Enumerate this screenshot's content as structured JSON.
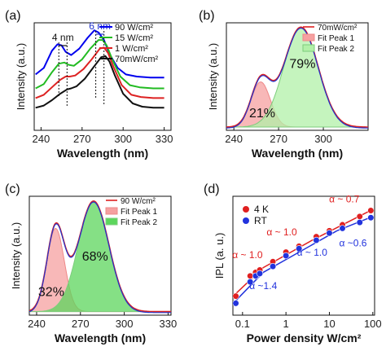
{
  "figure": {
    "panel_labels": [
      "(a)",
      "(b)",
      "(c)",
      "(d)"
    ]
  },
  "chart_data": [
    {
      "panel": "(a)",
      "type": "line",
      "xlabel": "Wavelength (nm)",
      "ylabel": "Intensity (a.u.)",
      "xlim": [
        235,
        335
      ],
      "xticks": [
        240,
        270,
        300,
        330
      ],
      "xtick_labels": [
        "240",
        "270",
        "300",
        "330"
      ],
      "legend_position": "top-right",
      "annotations": [
        {
          "text": "4 nm",
          "x_from": 253,
          "x_to": 259
        },
        {
          "text": "6 nm",
          "x_from": 280,
          "x_to": 286
        }
      ],
      "series": [
        {
          "name": "90 W/cm²",
          "color": "#0000ee",
          "x": [
            236,
            242,
            248,
            252,
            255,
            258,
            262,
            268,
            274,
            279,
            282,
            286,
            290,
            296,
            302,
            310,
            320,
            330
          ],
          "y": [
            0.52,
            0.58,
            0.74,
            0.8,
            0.79,
            0.73,
            0.7,
            0.76,
            0.86,
            0.93,
            0.91,
            0.84,
            0.71,
            0.58,
            0.52,
            0.5,
            0.49,
            0.49
          ]
        },
        {
          "name": "15 W/cm²",
          "color": "#22bb22",
          "x": [
            236,
            242,
            248,
            253,
            257,
            260,
            264,
            270,
            276,
            282,
            285,
            288,
            292,
            298,
            305,
            312,
            322,
            330
          ],
          "y": [
            0.39,
            0.43,
            0.54,
            0.62,
            0.63,
            0.61,
            0.6,
            0.66,
            0.76,
            0.84,
            0.84,
            0.79,
            0.66,
            0.5,
            0.42,
            0.4,
            0.39,
            0.39
          ]
        },
        {
          "name": "1 W/cm²",
          "color": "#dd2222",
          "x": [
            236,
            242,
            248,
            254,
            258,
            261,
            265,
            271,
            277,
            283,
            286,
            289,
            293,
            299,
            306,
            313,
            322,
            330
          ],
          "y": [
            0.3,
            0.33,
            0.4,
            0.47,
            0.5,
            0.5,
            0.51,
            0.57,
            0.66,
            0.76,
            0.77,
            0.72,
            0.59,
            0.42,
            0.33,
            0.31,
            0.3,
            0.3
          ]
        },
        {
          "name": "70mW/cm²",
          "color": "#111111",
          "x": [
            236,
            242,
            248,
            254,
            259,
            262,
            266,
            272,
            278,
            284,
            287,
            290,
            294,
            300,
            307,
            314,
            322,
            330
          ],
          "y": [
            0.21,
            0.23,
            0.28,
            0.34,
            0.38,
            0.39,
            0.41,
            0.48,
            0.58,
            0.68,
            0.69,
            0.64,
            0.51,
            0.34,
            0.25,
            0.22,
            0.21,
            0.21
          ]
        }
      ]
    },
    {
      "panel": "(b)",
      "type": "area",
      "xlabel": "Wavelength (nm)",
      "ylabel": "Intensity (a.u.)",
      "xlim": [
        235,
        330
      ],
      "xticks": [
        240,
        270,
        300
      ],
      "xtick_labels": [
        "240",
        "270",
        "300"
      ],
      "legend_position": "top-right",
      "annotations": [
        {
          "text": "21%",
          "x": 259,
          "y": 0.12
        },
        {
          "text": "79%",
          "x": 286,
          "y": 0.58
        }
      ],
      "series": [
        {
          "name": "70mW/cm²",
          "kind": "data",
          "color": "#dd2222"
        },
        {
          "name": "Fit Peak 1",
          "kind": "gauss",
          "center": 258,
          "amplitude": 0.42,
          "sigma": 6.5,
          "color": "#ee8888",
          "fill": "#f6a0a0"
        },
        {
          "name": "Fit Peak 2",
          "kind": "gauss",
          "center": 285,
          "amplitude": 0.93,
          "sigma": 11.5,
          "color": "#7ccd7c",
          "fill": "#b2f0a8"
        },
        {
          "name": "",
          "kind": "fit-sum",
          "color": "#2233cc"
        }
      ]
    },
    {
      "panel": "(c)",
      "type": "area",
      "xlabel": "Wavelength (nm)",
      "ylabel": "Intensity (a.u.)",
      "xlim": [
        235,
        332
      ],
      "xticks": [
        240,
        270,
        300,
        330
      ],
      "xtick_labels": [
        "240",
        "270",
        "300",
        "330"
      ],
      "legend_position": "top-right",
      "annotations": [
        {
          "text": "32%",
          "x": 250,
          "y": 0.16
        },
        {
          "text": "68%",
          "x": 280,
          "y": 0.46
        }
      ],
      "series": [
        {
          "name": "90 W/cm²",
          "kind": "data",
          "color": "#dd2222"
        },
        {
          "name": "Fit Peak 1",
          "kind": "gauss",
          "center": 253,
          "amplitude": 0.7,
          "sigma": 6.0,
          "color": "#ee8888",
          "fill": "#f6a0a0"
        },
        {
          "name": "Fit Peak 2",
          "kind": "gauss",
          "center": 279,
          "amplitude": 0.93,
          "sigma": 10.5,
          "color": "#7ccd7c",
          "fill": "#5cd65c"
        },
        {
          "name": "",
          "kind": "fit-sum",
          "color": "#2233cc"
        }
      ]
    },
    {
      "panel": "(d)",
      "type": "scatter",
      "xlabel": "Power density W/cm²",
      "ylabel": "IPL (a. u.)",
      "xscale": "log",
      "yscale": "log",
      "xlim": [
        0.06,
        110
      ],
      "ylim": [
        0,
        1
      ],
      "xticks": [
        0.1,
        1,
        10,
        100
      ],
      "xtick_labels": [
        "0.1",
        "1",
        "10",
        "100"
      ],
      "legend_position": "top-left",
      "series": [
        {
          "name": "4 K",
          "color": "#e02020",
          "x": [
            0.07,
            0.15,
            0.2,
            0.25,
            0.5,
            1,
            2,
            5,
            10,
            20,
            50,
            90
          ],
          "y": [
            0.16,
            0.33,
            0.36,
            0.38,
            0.45,
            0.53,
            0.58,
            0.66,
            0.71,
            0.76,
            0.83,
            0.88
          ]
        },
        {
          "name": "RT",
          "color": "#2233dd",
          "x": [
            0.07,
            0.15,
            0.2,
            0.25,
            0.5,
            1,
            2,
            5,
            10,
            20,
            50,
            90
          ],
          "y": [
            0.1,
            0.28,
            0.33,
            0.35,
            0.41,
            0.5,
            0.56,
            0.63,
            0.69,
            0.73,
            0.78,
            0.82
          ]
        }
      ],
      "fit_lines": [
        {
          "color": "#e02020",
          "x": [
            0.065,
            0.3
          ],
          "y": [
            0.17,
            0.4
          ]
        },
        {
          "color": "#e02020",
          "x": [
            0.3,
            4
          ],
          "y": [
            0.4,
            0.63
          ]
        },
        {
          "color": "#e02020",
          "x": [
            4,
            100
          ],
          "y": [
            0.63,
            0.89
          ]
        },
        {
          "color": "#2233dd",
          "x": [
            0.065,
            0.3
          ],
          "y": [
            0.11,
            0.36
          ]
        },
        {
          "color": "#2233dd",
          "x": [
            0.3,
            15
          ],
          "y": [
            0.36,
            0.71
          ]
        },
        {
          "color": "#2233dd",
          "x": [
            15,
            100
          ],
          "y": [
            0.71,
            0.83
          ]
        }
      ],
      "annotations": [
        {
          "text": "α ~ 0.7",
          "color": "#e02020",
          "x": 22,
          "y": 0.95
        },
        {
          "text": "α ~ 1.0",
          "color": "#e02020",
          "x": 0.8,
          "y": 0.67
        },
        {
          "text": "α ~ 1.0",
          "color": "#e02020",
          "x": 0.13,
          "y": 0.48
        },
        {
          "text": "α ~0.6",
          "color": "#2233dd",
          "x": 35,
          "y": 0.58
        },
        {
          "text": "α ~ 1.0",
          "color": "#2233dd",
          "x": 4,
          "y": 0.5
        },
        {
          "text": "α ~1.4",
          "color": "#2233dd",
          "x": 0.3,
          "y": 0.22
        }
      ]
    }
  ]
}
